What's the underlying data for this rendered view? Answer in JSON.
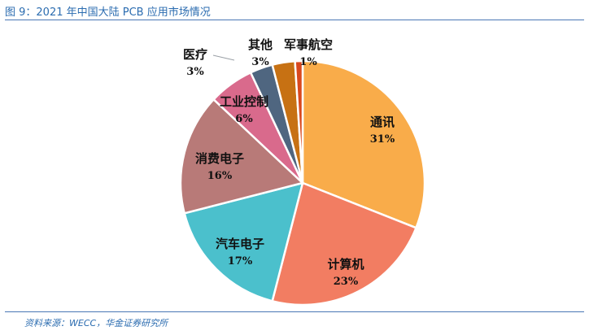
{
  "header": {
    "title": "图 9：2021 年中国大陆 PCB 应用市场情况"
  },
  "footer": {
    "source": "资料来源：WECC，华金证券研究所"
  },
  "chart_data": {
    "type": "pie",
    "title": "",
    "series": [
      {
        "name": "通讯",
        "value": 31,
        "label": "31%",
        "color": "#f9ac4a"
      },
      {
        "name": "计算机",
        "value": 23,
        "label": "23%",
        "color": "#f27d62"
      },
      {
        "name": "汽车电子",
        "value": 17,
        "label": "17%",
        "color": "#4bc0cc"
      },
      {
        "name": "消费电子",
        "value": 16,
        "label": "16%",
        "color": "#b87a78"
      },
      {
        "name": "工业控制",
        "value": 6,
        "label": "6%",
        "color": "#d96a8c"
      },
      {
        "name": "医疗",
        "value": 3,
        "label": "3%",
        "color": "#4f6680"
      },
      {
        "name": "其他",
        "value": 3,
        "label": "3%",
        "color": "#c77113"
      },
      {
        "name": "军事航空",
        "value": 1,
        "label": "1%",
        "color": "#d9481e"
      }
    ]
  }
}
